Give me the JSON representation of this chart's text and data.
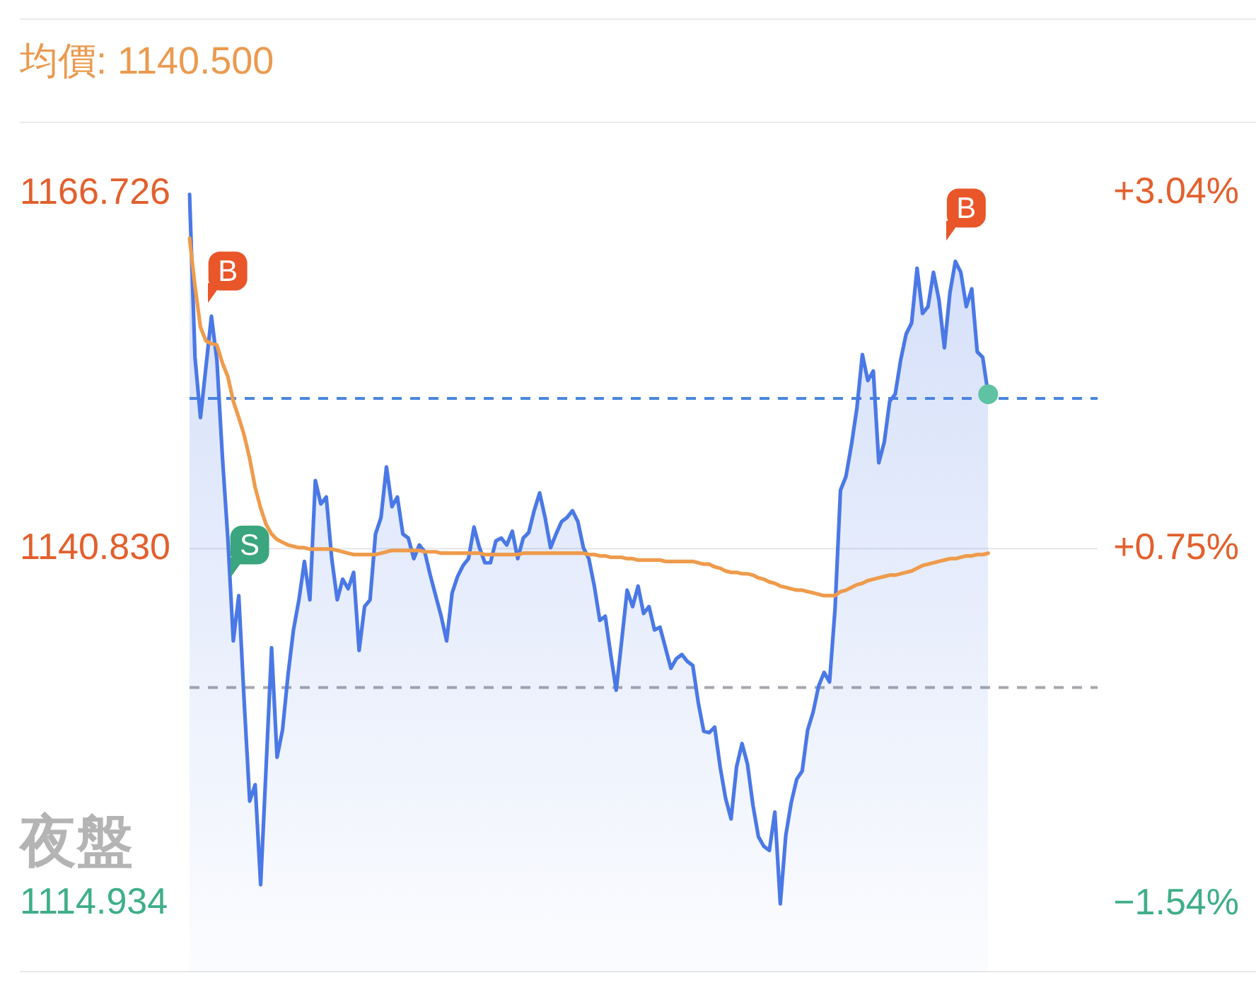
{
  "chart_data": {
    "type": "area",
    "title": "均價: 1140.500",
    "annotations": [
      "夜盤"
    ],
    "categories": [
      null,
      null,
      null,
      null,
      null,
      null,
      null,
      null,
      null,
      null,
      null,
      null,
      null,
      null,
      null,
      null,
      null,
      null,
      null,
      null,
      null,
      null,
      null,
      null,
      null,
      null,
      null,
      null,
      null,
      null,
      null,
      null,
      null,
      null,
      null,
      null,
      null,
      null,
      null,
      null,
      null,
      null,
      null,
      null,
      null,
      null,
      null,
      null,
      null,
      null,
      null,
      null,
      null,
      null,
      null,
      null,
      null,
      null,
      null,
      null,
      null,
      null,
      null,
      null,
      null,
      null,
      null,
      null,
      null,
      null,
      null,
      null,
      null,
      null,
      null,
      null,
      null,
      null,
      null,
      null,
      null,
      null,
      null,
      null,
      null,
      null,
      null,
      null,
      null,
      null,
      null,
      null,
      null,
      null,
      null,
      null,
      null,
      null,
      null,
      null,
      null,
      null,
      null,
      null,
      null,
      null,
      null,
      null,
      null,
      null,
      null,
      null,
      null,
      null,
      null,
      null,
      null,
      null,
      null,
      null,
      null,
      null,
      null,
      null,
      null,
      null,
      null,
      null,
      null,
      null,
      null,
      null,
      null,
      null,
      null,
      null,
      null,
      null,
      null,
      null,
      null,
      null,
      null,
      null,
      null,
      null,
      null,
      null,
      null,
      null,
      null,
      null,
      null,
      null,
      null,
      null,
      null,
      null,
      null,
      null,
      null,
      null,
      null,
      null,
      null,
      null,
      null
    ],
    "series": [
      {
        "color": "#4a78e6",
        "values": [
          1166.7,
          1154.8,
          1150.4,
          1154.1,
          1157.8,
          1154.6,
          1147.6,
          1141.6,
          1134.1,
          1137.4,
          1129.6,
          1122.4,
          1123.6,
          1116.3,
          1124.9,
          1133.6,
          1125.6,
          1127.6,
          1131.6,
          1134.9,
          1137.1,
          1139.9,
          1137.1,
          1145.8,
          1144.1,
          1144.6,
          1140.1,
          1137.1,
          1138.6,
          1137.9,
          1139.1,
          1133.4,
          1136.6,
          1137.1,
          1141.9,
          1143.1,
          1146.8,
          1143.9,
          1144.6,
          1141.9,
          1141.6,
          1140.1,
          1141.1,
          1140.6,
          1138.9,
          1137.4,
          1135.9,
          1134.1,
          1137.6,
          1138.8,
          1139.6,
          1140.1,
          1142.4,
          1140.9,
          1139.8,
          1139.8,
          1141.4,
          1141.6,
          1141.1,
          1142.1,
          1140.1,
          1141.6,
          1142.0,
          1143.6,
          1144.9,
          1143.1,
          1140.9,
          1141.9,
          1142.8,
          1143.1,
          1143.6,
          1142.8,
          1140.9,
          1140.1,
          1138.1,
          1135.6,
          1135.9,
          1133.1,
          1130.5,
          1134.1,
          1137.8,
          1136.6,
          1138.1,
          1136.1,
          1136.6,
          1134.9,
          1135.1,
          1133.6,
          1132.1,
          1132.8,
          1133.1,
          1132.6,
          1132.3,
          1129.6,
          1127.5,
          1127.4,
          1127.8,
          1124.9,
          1122.6,
          1121.1,
          1124.9,
          1126.6,
          1125.1,
          1122.1,
          1119.8,
          1119.1,
          1118.8,
          1121.6,
          1114.9,
          1119.9,
          1122.3,
          1124.0,
          1124.6,
          1127.6,
          1128.9,
          1130.8,
          1131.8,
          1131.1,
          1136.4,
          1145.1,
          1146.1,
          1148.4,
          1151.1,
          1155.0,
          1153.1,
          1153.8,
          1147.1,
          1148.6,
          1151.6,
          1152.1,
          1154.6,
          1156.5,
          1157.3,
          1161.3,
          1158.0,
          1158.5,
          1161.0,
          1159.0,
          1155.5,
          1159.5,
          1161.8,
          1161.0,
          1158.5,
          1159.8,
          1155.2,
          1154.8,
          1152.1,
          null,
          null,
          null,
          null,
          null,
          null,
          null,
          null,
          null,
          null,
          null,
          null,
          null,
          null,
          null,
          null,
          null,
          null,
          null,
          null
        ]
      },
      {
        "type": "line",
        "color": "#ef9b4c",
        "values": [
          1163.5,
          1160.0,
          1157.0,
          1156.0,
          1155.8,
          1155.7,
          1154.4,
          1153.4,
          1151.6,
          1150.4,
          1149.1,
          1147.4,
          1145.3,
          1143.8,
          1142.6,
          1141.9,
          1141.5,
          1141.3,
          1141.1,
          1141.0,
          1140.9,
          1140.9,
          1140.8,
          1140.8,
          1140.8,
          1140.8,
          1140.8,
          1140.7,
          1140.6,
          1140.5,
          1140.4,
          1140.4,
          1140.4,
          1140.4,
          1140.4,
          1140.5,
          1140.6,
          1140.7,
          1140.7,
          1140.7,
          1140.7,
          1140.7,
          1140.7,
          1140.6,
          1140.6,
          1140.6,
          1140.5,
          1140.5,
          1140.5,
          1140.5,
          1140.5,
          1140.5,
          1140.5,
          1140.5,
          1140.4,
          1140.4,
          1140.4,
          1140.4,
          1140.4,
          1140.4,
          1140.4,
          1140.5,
          1140.5,
          1140.5,
          1140.5,
          1140.5,
          1140.5,
          1140.5,
          1140.5,
          1140.5,
          1140.5,
          1140.5,
          1140.5,
          1140.4,
          1140.4,
          1140.3,
          1140.3,
          1140.2,
          1140.2,
          1140.2,
          1140.1,
          1140.1,
          1140.0,
          1140.0,
          1140.0,
          1140.0,
          1140.0,
          1139.9,
          1139.9,
          1139.9,
          1139.9,
          1139.9,
          1139.9,
          1139.8,
          1139.7,
          1139.7,
          1139.5,
          1139.4,
          1139.2,
          1139.1,
          1139.1,
          1139.0,
          1139.0,
          1138.9,
          1138.7,
          1138.6,
          1138.4,
          1138.3,
          1138.1,
          1138.0,
          1137.9,
          1137.8,
          1137.8,
          1137.7,
          1137.6,
          1137.5,
          1137.4,
          1137.4,
          1137.4,
          1137.7,
          1137.8,
          1138.0,
          1138.2,
          1138.3,
          1138.5,
          1138.6,
          1138.7,
          1138.8,
          1138.9,
          1138.9,
          1139.0,
          1139.1,
          1139.2,
          1139.4,
          1139.6,
          1139.7,
          1139.8,
          1139.9,
          1140.0,
          1140.1,
          1140.1,
          1140.2,
          1140.3,
          1140.3,
          1140.4,
          1140.4,
          1140.5,
          null,
          null,
          null,
          null,
          null,
          null,
          null,
          null,
          null,
          null,
          null,
          null,
          null,
          null,
          null,
          null,
          null,
          null,
          null,
          null
        ]
      },
      {
        "type": "scatter",
        "marker": "square",
        "color": "#e8562a",
        "values": [
          null,
          null,
          null,
          null,
          null,
          null,
          null,
          1161.1,
          null,
          null,
          null,
          1141.1,
          null,
          null,
          null,
          null,
          null,
          null,
          null,
          null,
          null,
          null,
          null,
          null,
          null,
          null,
          null,
          null,
          null,
          null,
          null,
          null,
          null,
          null,
          null,
          null,
          null,
          null,
          null,
          null,
          null,
          null,
          null,
          null,
          null,
          null,
          null,
          null,
          null,
          null,
          null,
          null,
          null,
          null,
          null,
          null,
          null,
          null,
          null,
          null,
          null,
          null,
          null,
          null,
          null,
          null,
          null,
          null,
          null,
          null,
          null,
          null,
          null,
          null,
          null,
          null,
          null,
          null,
          null,
          null,
          null,
          null,
          null,
          null,
          null,
          null,
          null,
          null,
          null,
          null,
          null,
          null,
          null,
          null,
          null,
          null,
          null,
          null,
          null,
          null,
          null,
          null,
          null,
          null,
          null,
          null,
          null,
          null,
          null,
          null,
          null,
          null,
          null,
          null,
          null,
          null,
          null,
          null,
          null,
          null,
          null,
          null,
          null,
          null,
          null,
          null,
          null,
          null,
          null,
          null,
          null,
          null,
          null,
          null,
          null,
          null,
          null,
          null,
          null,
          null,
          null,
          null,
          1165.7,
          null,
          null,
          null,
          null,
          null,
          null,
          null,
          null,
          null,
          null,
          null,
          null,
          null,
          null,
          null,
          null,
          null,
          null,
          null,
          null,
          null,
          null,
          null,
          null
        ],
        "value_labels": [
          null,
          null,
          null,
          null,
          null,
          null,
          null,
          "B",
          null,
          null,
          null,
          "S",
          null,
          null,
          null,
          null,
          null,
          null,
          null,
          null,
          null,
          null,
          null,
          null,
          null,
          null,
          null,
          null,
          null,
          null,
          null,
          null,
          null,
          null,
          null,
          null,
          null,
          null,
          null,
          null,
          null,
          null,
          null,
          null,
          null,
          null,
          null,
          null,
          null,
          null,
          null,
          null,
          null,
          null,
          null,
          null,
          null,
          null,
          null,
          null,
          null,
          null,
          null,
          null,
          null,
          null,
          null,
          null,
          null,
          null,
          null,
          null,
          null,
          null,
          null,
          null,
          null,
          null,
          null,
          null,
          null,
          null,
          null,
          null,
          null,
          null,
          null,
          null,
          null,
          null,
          null,
          null,
          null,
          null,
          null,
          null,
          null,
          null,
          null,
          null,
          null,
          null,
          null,
          null,
          null,
          null,
          null,
          null,
          null,
          null,
          null,
          null,
          null,
          null,
          null,
          null,
          null,
          null,
          null,
          null,
          null,
          null,
          null,
          null,
          null,
          null,
          null,
          null,
          null,
          null,
          null,
          null,
          null,
          null,
          null,
          null,
          null,
          null,
          null,
          null,
          null,
          null,
          "B",
          null,
          null,
          null,
          null,
          null,
          null,
          null,
          null,
          null,
          null,
          null,
          null,
          null,
          null,
          null,
          null,
          null,
          null,
          null,
          null,
          null,
          null,
          null,
          null
        ],
        "colors": [
          null,
          null,
          null,
          null,
          null,
          null,
          null,
          "#e8562a",
          null,
          null,
          null,
          "#3aa57e",
          null,
          null,
          null,
          null,
          null,
          null,
          null,
          null,
          null,
          null,
          null,
          null,
          null,
          null,
          null,
          null,
          null,
          null,
          null,
          null,
          null,
          null,
          null,
          null,
          null,
          null,
          null,
          null,
          null,
          null,
          null,
          null,
          null,
          null,
          null,
          null,
          null,
          null,
          null,
          null,
          null,
          null,
          null,
          null,
          null,
          null,
          null,
          null,
          null,
          null,
          null,
          null,
          null,
          null,
          null,
          null,
          null,
          null,
          null,
          null,
          null,
          null,
          null,
          null,
          null,
          null,
          null,
          null,
          null,
          null,
          null,
          null,
          null,
          null,
          null,
          null,
          null,
          null,
          null,
          null,
          null,
          null,
          null,
          null,
          null,
          null,
          null,
          null,
          null,
          null,
          null,
          null,
          null,
          null,
          null,
          null,
          null,
          null,
          null,
          null,
          null,
          null,
          null,
          null,
          null,
          null,
          null,
          null,
          null,
          null,
          null,
          null,
          null,
          null,
          null,
          null,
          null,
          null,
          null,
          null,
          null,
          null,
          null,
          null,
          null,
          null,
          null,
          null,
          null,
          null,
          "#e8562a",
          null,
          null,
          null,
          null,
          null,
          null,
          null,
          null,
          null,
          null,
          null,
          null,
          null,
          null,
          null,
          null,
          null,
          null,
          null,
          null,
          null,
          null,
          null,
          null
        ]
      },
      {
        "type": "scatter",
        "marker": "circle",
        "color": "#5fc2a2",
        "values": [
          null,
          null,
          null,
          null,
          null,
          null,
          null,
          null,
          null,
          null,
          null,
          null,
          null,
          null,
          null,
          null,
          null,
          null,
          null,
          null,
          null,
          null,
          null,
          null,
          null,
          null,
          null,
          null,
          null,
          null,
          null,
          null,
          null,
          null,
          null,
          null,
          null,
          null,
          null,
          null,
          null,
          null,
          null,
          null,
          null,
          null,
          null,
          null,
          null,
          null,
          null,
          null,
          null,
          null,
          null,
          null,
          null,
          null,
          null,
          null,
          null,
          null,
          null,
          null,
          null,
          null,
          null,
          null,
          null,
          null,
          null,
          null,
          null,
          null,
          null,
          null,
          null,
          null,
          null,
          null,
          null,
          null,
          null,
          null,
          null,
          null,
          null,
          null,
          null,
          null,
          null,
          null,
          null,
          null,
          null,
          null,
          null,
          null,
          null,
          null,
          null,
          null,
          null,
          null,
          null,
          null,
          null,
          null,
          null,
          null,
          null,
          null,
          null,
          null,
          null,
          null,
          null,
          null,
          null,
          null,
          null,
          null,
          null,
          null,
          null,
          null,
          null,
          null,
          null,
          null,
          null,
          null,
          null,
          null,
          null,
          null,
          null,
          null,
          null,
          null,
          null,
          null,
          null,
          null,
          null,
          null,
          1152.1,
          null,
          null,
          null,
          null,
          null,
          null,
          null,
          null,
          null,
          null,
          null,
          null,
          null,
          null,
          null,
          null,
          null,
          null,
          null,
          null
        ]
      }
    ],
    "ylim": [
      1109.9,
      1172.0
    ],
    "yticks": [
      1114.934,
      {
        "value": 1140.83,
        "label": "1140.830"
      },
      1166.726
    ],
    "y2lim": [
      -1.98,
      3.5
    ],
    "y2ticks": [
      {
        "value": -1.54,
        "label": "−1.54%"
      },
      {
        "value": 0.75,
        "label": "+0.75%"
      },
      {
        "value": 3.04,
        "label": "+3.04%"
      }
    ],
    "ref_lines": [
      {
        "axis": "y",
        "value": 1140.83,
        "color": "#e6e6ea",
        "line_style": "solid"
      },
      {
        "axis": "y",
        "value": 1151.8,
        "color": "#4a86dc",
        "line_style": "dashed"
      },
      {
        "axis": "y",
        "value": 1130.7,
        "color": "#a6a6ae",
        "line_style": "dashed"
      }
    ]
  }
}
